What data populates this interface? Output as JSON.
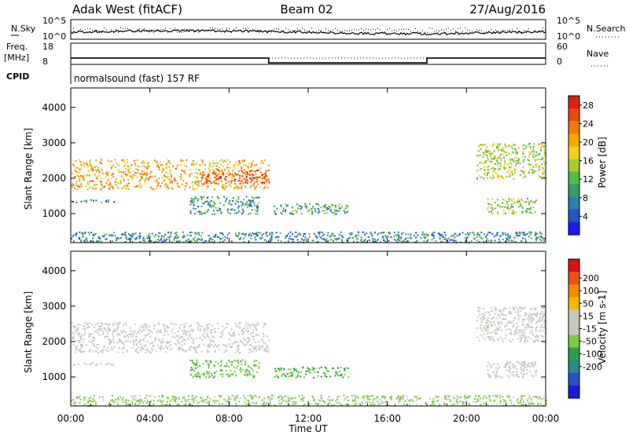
{
  "header": {
    "station": "Adak West (fitACF)",
    "beam": "Beam 02",
    "date": "27/Aug/2016"
  },
  "strips": {
    "nsky_label": "N.Sky",
    "nsearch_label": "N.Search",
    "nsky_ticks": [
      "10^5",
      "10^0"
    ],
    "nsearch_ticks": [
      "10^5",
      "10^0"
    ],
    "freq_label_1": "Freq.",
    "freq_label_2": "[MHz]",
    "freq_ticks": [
      "18",
      "8"
    ],
    "nave_label": "Nave",
    "nave_ticks": [
      "60",
      "0"
    ],
    "cpid_label": "CPID",
    "cpid_text": "normalsound (fast) 157 RF"
  },
  "chart_data": [
    {
      "type": "heatmap",
      "title": "",
      "xlabel": "Time UT",
      "ylabel": "Slant Range [km]",
      "xlim": [
        0,
        24
      ],
      "ylim": [
        180,
        4550
      ],
      "x_ticks": [
        "00:00",
        "04:00",
        "08:00",
        "12:00",
        "16:00",
        "20:00",
        "00:00"
      ],
      "y_ticks": [
        "1000",
        "2000",
        "3000",
        "4000"
      ],
      "colorbar": {
        "label": "Power [dB]",
        "ticks": [
          "4",
          "8",
          "12",
          "16",
          "20",
          "24",
          "28"
        ],
        "colors": [
          "#1a1aff",
          "#2255c8",
          "#2a7db0",
          "#3a9a6a",
          "#55bb44",
          "#a7cc2e",
          "#f0d020",
          "#f5a800",
          "#f07a10",
          "#e84a10",
          "#e02010"
        ],
        "range": [
          0,
          30
        ]
      },
      "regions": [
        {
          "name": "band 2000 km morning",
          "t": [
            0.0,
            10.0
          ],
          "r": [
            1700,
            2550
          ],
          "level": 20
        },
        {
          "name": "band core 08-10 UT",
          "t": [
            6.5,
            10.0
          ],
          "r": [
            1850,
            2250
          ],
          "level": 26
        },
        {
          "name": "near range 1400 km",
          "t": [
            0.0,
            2.2
          ],
          "r": [
            1330,
            1420
          ],
          "level": 7
        },
        {
          "name": "mid range 1000-1500 km",
          "t": [
            6.0,
            9.5
          ],
          "r": [
            1000,
            1500
          ],
          "level": 9
        },
        {
          "name": "scatter 1100 km 10-14 UT",
          "t": [
            10.2,
            14.0
          ],
          "r": [
            1000,
            1300
          ],
          "level": 10
        },
        {
          "name": "ground scatter near range",
          "t": [
            0.0,
            24.0
          ],
          "r": [
            200,
            500
          ],
          "level": 8
        },
        {
          "name": "evening band 2500 km",
          "t": [
            20.5,
            24.0
          ],
          "r": [
            2000,
            3000
          ],
          "level": 15
        },
        {
          "name": "evening band 1200 km",
          "t": [
            21.0,
            23.5
          ],
          "r": [
            1000,
            1450
          ],
          "level": 14
        }
      ]
    },
    {
      "type": "heatmap",
      "title": "",
      "xlabel": "Time UT",
      "ylabel": "Slant Range [km]",
      "xlim": [
        0,
        24
      ],
      "ylim": [
        180,
        4550
      ],
      "x_ticks": [
        "00:00",
        "04:00",
        "08:00",
        "12:00",
        "16:00",
        "20:00",
        "00:00"
      ],
      "y_ticks": [
        "1000",
        "2000",
        "3000",
        "4000"
      ],
      "colorbar": {
        "label": "Velocity [m s-1]",
        "ticks": [
          "200",
          "100",
          "50",
          "15",
          "-15",
          "-50",
          "-100",
          "-200"
        ],
        "colors": [
          "#1a1add",
          "#2f4fcc",
          "#2c8a88",
          "#2aa04a",
          "#7ccc44",
          "#c8c8c0",
          "#c8c8c0",
          "#f5b800",
          "#f08a00",
          "#ee5010",
          "#e01010"
        ],
        "range": [
          -250,
          250
        ]
      },
      "regions": [
        {
          "name": "band 2000 km ground scatter",
          "t": [
            0.0,
            10.0
          ],
          "r": [
            1700,
            2550
          ],
          "velocity": 0
        },
        {
          "name": "near range 1400 km",
          "t": [
            0.0,
            2.2
          ],
          "r": [
            1330,
            1420
          ],
          "velocity": 0
        },
        {
          "name": "mid range 1000-1500 km",
          "t": [
            6.0,
            9.5
          ],
          "r": [
            1000,
            1500
          ],
          "velocity": -60
        },
        {
          "name": "scatter 1100 km 10-14 UT",
          "t": [
            10.2,
            14.0
          ],
          "r": [
            1000,
            1300
          ],
          "velocity": -70
        },
        {
          "name": "near range ground",
          "t": [
            0.0,
            24.0
          ],
          "r": [
            200,
            500
          ],
          "velocity": -30
        },
        {
          "name": "evening band 2500 km",
          "t": [
            20.5,
            24.0
          ],
          "r": [
            2000,
            3000
          ],
          "velocity": 0
        },
        {
          "name": "evening band 1200 km",
          "t": [
            21.0,
            23.5
          ],
          "r": [
            1000,
            1450
          ],
          "velocity": 0
        }
      ]
    }
  ],
  "freq_series": {
    "segments": [
      {
        "t": [
          0.0,
          10.0
        ],
        "mhz": 11.0
      },
      {
        "t": [
          10.0,
          18.0
        ],
        "mhz": 8.7
      },
      {
        "t": [
          18.0,
          24.0
        ],
        "mhz": 11.0
      }
    ]
  }
}
